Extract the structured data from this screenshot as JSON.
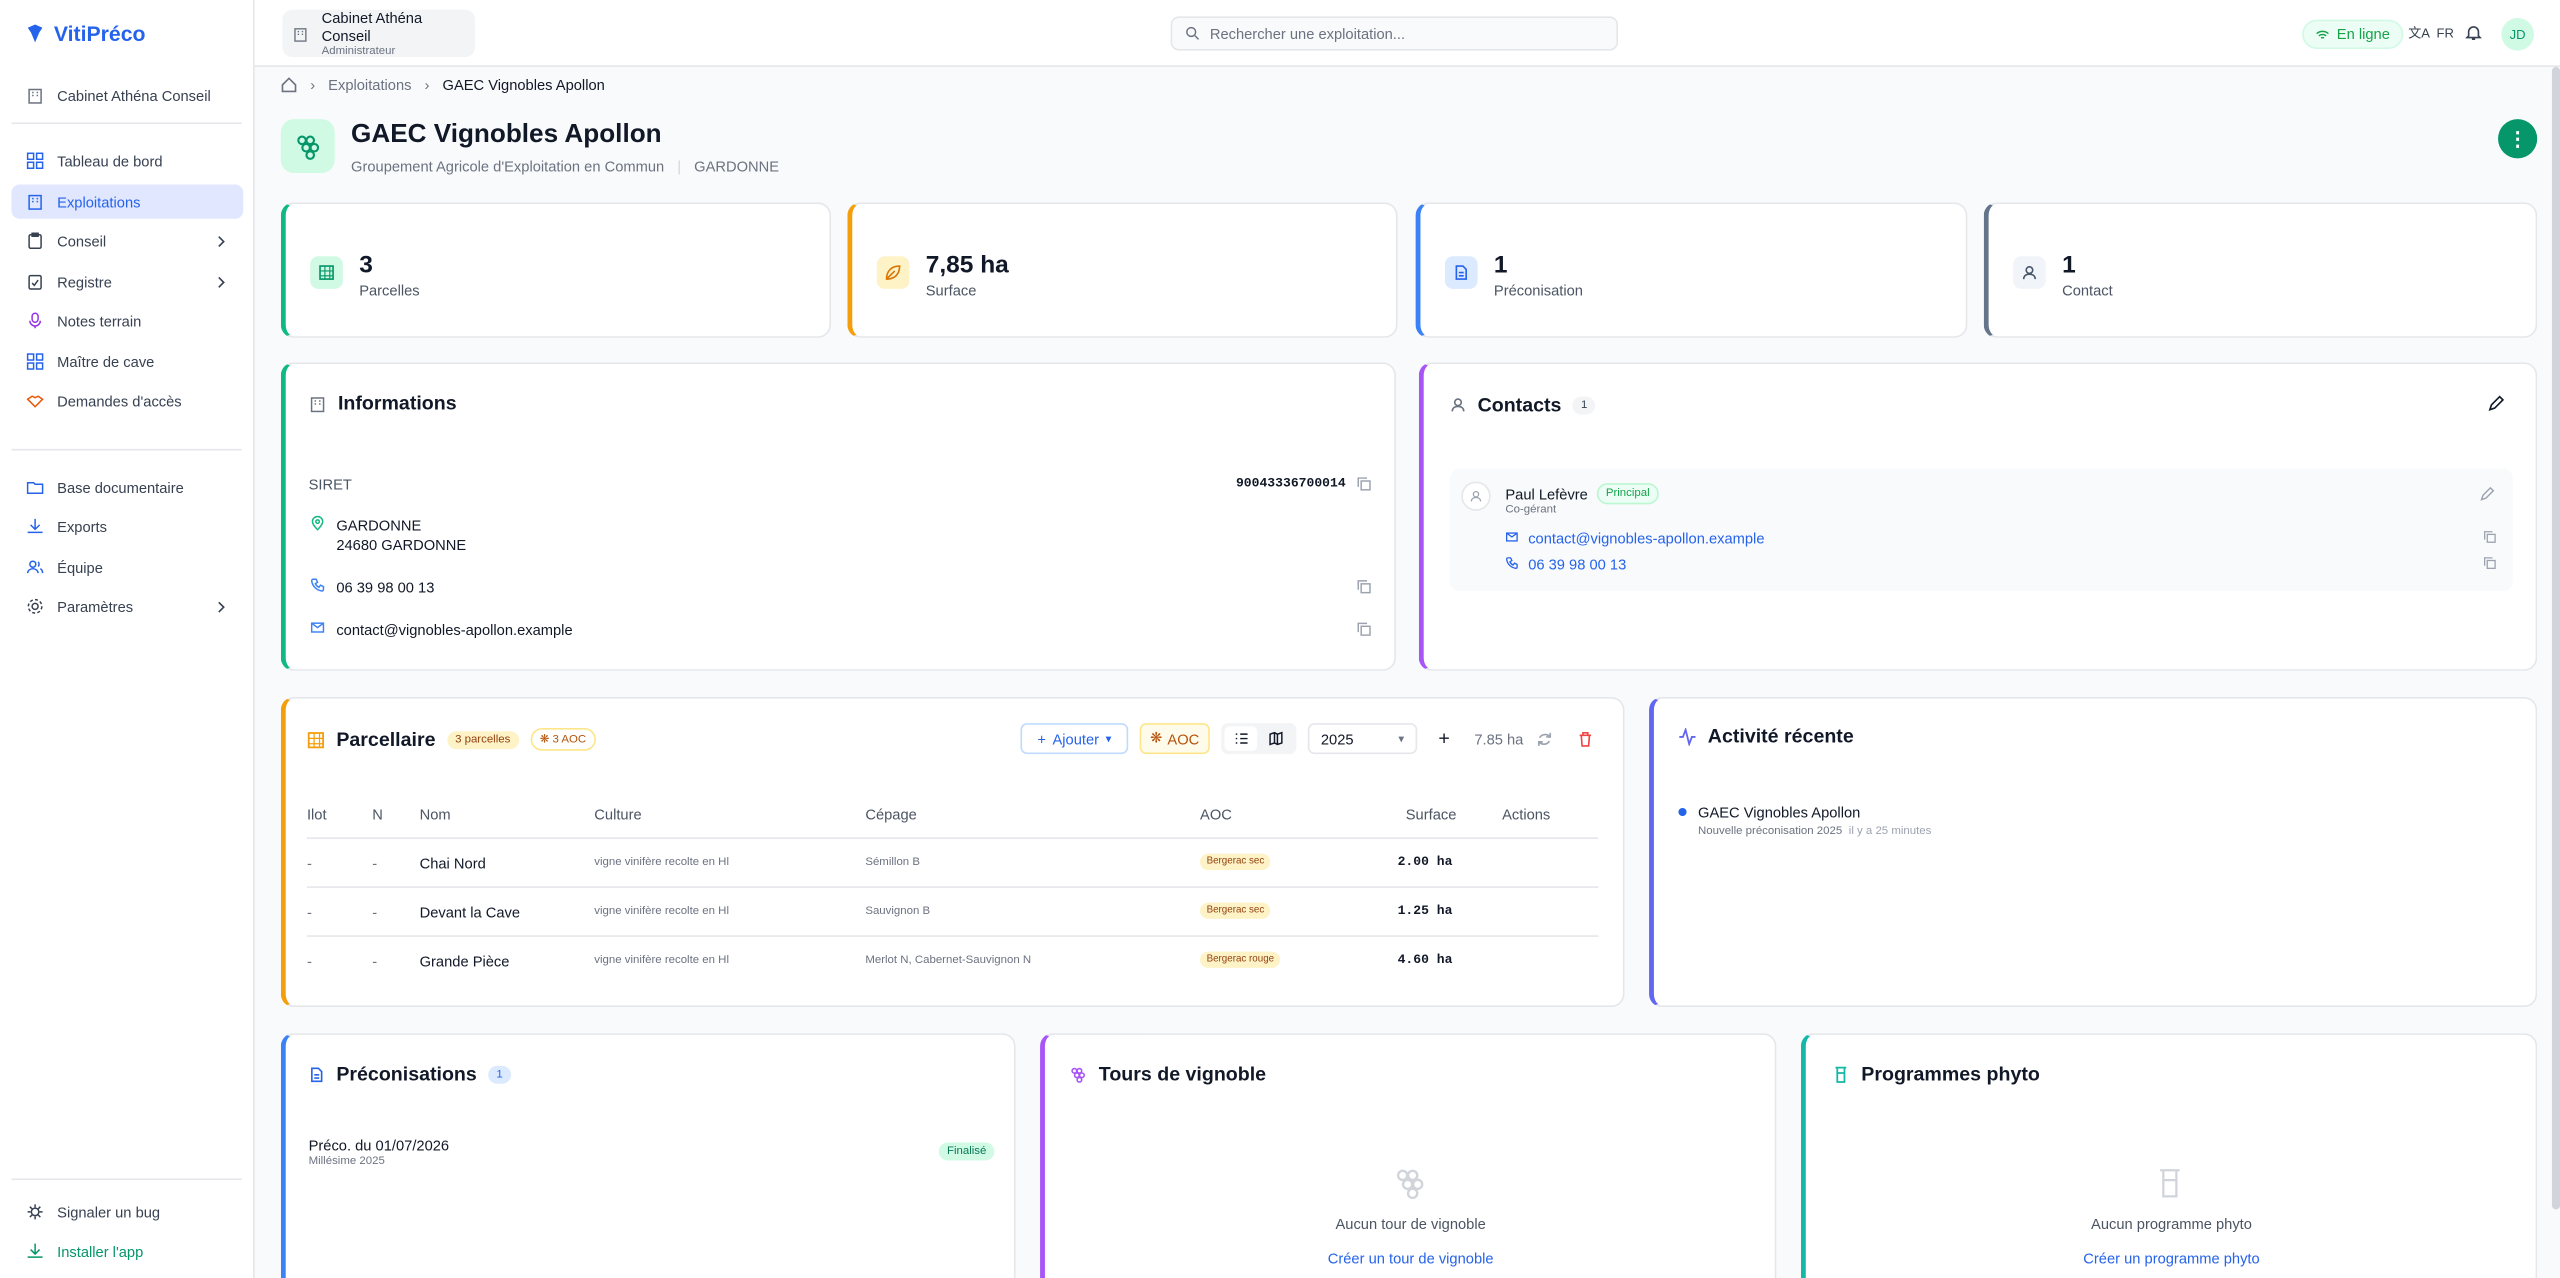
{
  "app": {
    "name": "VitiPréco"
  },
  "sidebar": {
    "org": "Cabinet Athéna Conseil",
    "items": [
      {
        "label": "Tableau de bord",
        "icon": "dashboard-icon"
      },
      {
        "label": "Exploitations",
        "icon": "building-icon"
      },
      {
        "label": "Conseil",
        "icon": "clipboard-icon"
      },
      {
        "label": "Registre",
        "icon": "clipboard-check-icon"
      },
      {
        "label": "Notes terrain",
        "icon": "microphone-icon"
      },
      {
        "label": "Maître de cave",
        "icon": "grid-icon"
      },
      {
        "label": "Demandes d'accès",
        "icon": "handshake-icon"
      },
      {
        "label": "Base documentaire",
        "icon": "folder-icon"
      },
      {
        "label": "Exports",
        "icon": "download-icon"
      },
      {
        "label": "Équipe",
        "icon": "users-icon"
      },
      {
        "label": "Paramètres",
        "icon": "gear-icon"
      }
    ],
    "bug": "Signaler un bug",
    "install": "Installer l'app"
  },
  "topbar": {
    "org_name": "Cabinet Athéna Conseil",
    "org_role": "Administrateur",
    "search_placeholder": "Rechercher une exploitation...",
    "online": "En ligne",
    "lang": "FR",
    "avatar": "JD"
  },
  "breadcrumb": [
    "Exploitations",
    "GAEC Vignobles Apollon"
  ],
  "farm": {
    "name": "GAEC Vignobles Apollon",
    "type": "Groupement Agricole d'Exploitation en Commun",
    "city": "GARDONNE"
  },
  "stats": [
    {
      "value": "3",
      "label": "Parcelles"
    },
    {
      "value": "7,85 ha",
      "label": "Surface"
    },
    {
      "value": "1",
      "label": "Préconisation"
    },
    {
      "value": "1",
      "label": "Contact"
    }
  ],
  "info": {
    "title": "Informations",
    "siret_label": "SIRET",
    "siret": "90043336700014",
    "address1": "GARDONNE",
    "address2": "24680 GARDONNE",
    "phone": "06 39 98 00 13",
    "email": "contact@vignobles-apollon.example"
  },
  "contacts": {
    "title": "Contacts",
    "count": "1",
    "name": "Paul Lefèvre",
    "badge": "Principal",
    "role": "Co-gérant",
    "email": "contact@vignobles-apollon.example",
    "phone": "06 39 98 00 13"
  },
  "parcellaire": {
    "title": "Parcellaire",
    "count_badge": "3 parcelles",
    "aoc_badge": "3 AOC",
    "add": "Ajouter",
    "aoc_btn": "AOC",
    "year": "2025",
    "total": "7.85 ha",
    "columns": [
      "Ilot",
      "N",
      "Nom",
      "Culture",
      "Cépage",
      "AOC",
      "Surface",
      "Actions"
    ],
    "rows": [
      {
        "ilot": "-",
        "n": "-",
        "nom": "Chai Nord",
        "culture": "vigne vinifère recolte en Hl",
        "cepage": "Sémillon B",
        "aoc": "Bergerac sec",
        "surface": "2.00 ha"
      },
      {
        "ilot": "-",
        "n": "-",
        "nom": "Devant la Cave",
        "culture": "vigne vinifère recolte en Hl",
        "cepage": "Sauvignon B",
        "aoc": "Bergerac sec",
        "surface": "1.25 ha"
      },
      {
        "ilot": "-",
        "n": "-",
        "nom": "Grande Pièce",
        "culture": "vigne vinifère recolte en Hl",
        "cepage": "Merlot N, Cabernet-Sauvignon N",
        "aoc": "Bergerac rouge",
        "surface": "4.60 ha"
      }
    ]
  },
  "activity": {
    "title": "Activité récente",
    "item_title": "GAEC Vignobles Apollon",
    "item_desc": "Nouvelle préconisation 2025",
    "item_time": "il y a 25 minutes"
  },
  "preco": {
    "title": "Préconisations",
    "count": "1",
    "item": "Préco. du 01/07/2026",
    "millesime": "Millésime 2025",
    "status": "Finalisé"
  },
  "tours": {
    "title": "Tours de vignoble",
    "empty": "Aucun tour de vignoble",
    "cta": "Créer un tour de vignoble"
  },
  "phyto": {
    "title": "Programmes phyto",
    "empty": "Aucun programme phyto",
    "cta": "Créer un programme phyto"
  },
  "colors": {
    "primary": "#2563eb",
    "green": "#059669",
    "orange": "#f59e0b",
    "purple": "#a855f7",
    "teal": "#14b8a6"
  }
}
